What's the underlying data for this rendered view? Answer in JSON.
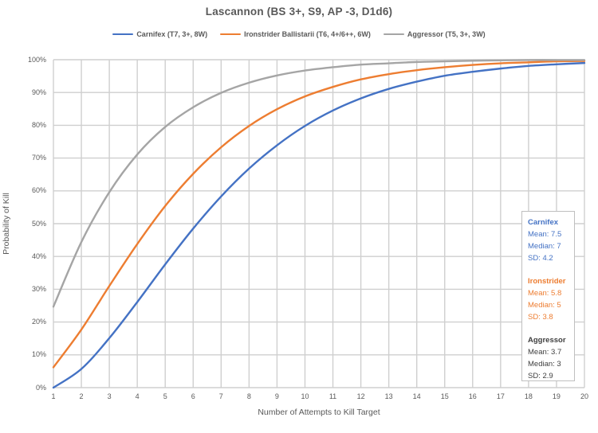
{
  "chart_data": {
    "type": "line",
    "title": "Lascannon (BS 3+, S9, AP -3, D1d6)",
    "xlabel": "Number of Attempts to Kill Target",
    "ylabel": "Probability of Kill",
    "x": [
      1,
      2,
      3,
      4,
      5,
      6,
      7,
      8,
      9,
      10,
      11,
      12,
      13,
      14,
      15,
      16,
      17,
      18,
      19,
      20
    ],
    "x_tick_labels": [
      "1",
      "2",
      "3",
      "4",
      "5",
      "6",
      "7",
      "8",
      "9",
      "10",
      "11",
      "12",
      "13",
      "14",
      "15",
      "16",
      "17",
      "18",
      "19",
      "20"
    ],
    "y_tick_labels": [
      "0%",
      "10%",
      "20%",
      "30%",
      "40%",
      "50%",
      "60%",
      "70%",
      "80%",
      "90%",
      "100%"
    ],
    "y_unit": "percent",
    "ylim": [
      0,
      100
    ],
    "xlim": [
      1,
      20
    ],
    "grid": true,
    "legend_position": "top",
    "series": [
      {
        "name": "Carnifex (T7, 3+, 8W)",
        "color": "#4472C4",
        "values": [
          0,
          5.7,
          15.1,
          26.1,
          37.6,
          48.5,
          58.3,
          66.8,
          73.9,
          79.8,
          84.5,
          88.2,
          91.1,
          93.3,
          95.1,
          96.3,
          97.3,
          98.1,
          98.6,
          99.0
        ]
      },
      {
        "name": "Ironstrider Ballistarii (T6, 4+/6++, 6W)",
        "color": "#ED7D31",
        "values": [
          6.2,
          17.7,
          31.0,
          43.8,
          55.4,
          65.2,
          73.3,
          79.8,
          84.9,
          88.8,
          91.7,
          94.0,
          95.6,
          96.8,
          97.7,
          98.4,
          98.9,
          99.2,
          99.5,
          99.6
        ]
      },
      {
        "name": "Aggressor (T5, 3+, 3W)",
        "color": "#A5A5A5",
        "values": [
          24.7,
          44.4,
          59.6,
          71.1,
          79.5,
          85.5,
          89.9,
          93.0,
          95.2,
          96.7,
          97.7,
          98.5,
          98.9,
          99.3,
          99.5,
          99.7,
          99.8,
          99.9,
          99.9,
          99.9
        ]
      }
    ],
    "colors": {
      "grid": "#CFCFCF",
      "text": "#595959"
    }
  },
  "stats_box": {
    "groups": [
      {
        "name": "Carnifex",
        "color": "#4472C4",
        "lines": [
          "Mean: 7.5",
          "Median: 7",
          "SD: 4.2"
        ]
      },
      {
        "name": "Ironstrider",
        "color": "#ED7D31",
        "lines": [
          "Mean: 5.8",
          "Median: 5",
          "SD: 3.8"
        ]
      },
      {
        "name": "Aggressor",
        "color": "#404040",
        "lines": [
          "Mean: 3.7",
          "Median: 3",
          "SD: 2.9"
        ]
      }
    ]
  }
}
